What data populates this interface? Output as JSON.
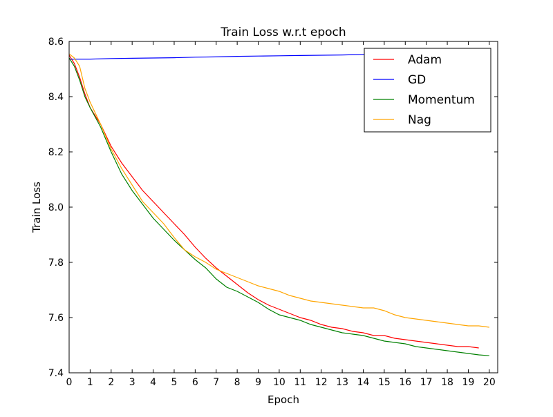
{
  "chart_data": {
    "type": "line",
    "title": "Train Loss w.r.t epoch",
    "xlabel": "Epoch",
    "ylabel": "Train Loss",
    "xlim": [
      0,
      20.4
    ],
    "ylim": [
      7.4,
      8.6
    ],
    "xticks": [
      "0",
      "1",
      "2",
      "3",
      "4",
      "5",
      "6",
      "7",
      "8",
      "9",
      "10",
      "11",
      "12",
      "13",
      "14",
      "15",
      "16",
      "17",
      "18",
      "19",
      "20"
    ],
    "yticks": [
      "7.4",
      "7.6",
      "7.8",
      "8.0",
      "8.2",
      "8.4",
      "8.6"
    ],
    "grid": false,
    "legend_position": "top-right",
    "series": [
      {
        "name": "Adam",
        "color": "#ff0000",
        "x": [
          0,
          0.25,
          0.5,
          0.75,
          1,
          1.5,
          2,
          2.5,
          3,
          3.5,
          4,
          4.5,
          5,
          5.5,
          6,
          6.5,
          7,
          7.5,
          8,
          8.5,
          9,
          9.5,
          10,
          10.5,
          11,
          11.5,
          12,
          12.5,
          13,
          13.5,
          14,
          14.5,
          15,
          15.5,
          16,
          16.5,
          17,
          17.5,
          18,
          18.5,
          19,
          19.5
        ],
        "y": [
          8.55,
          8.52,
          8.47,
          8.41,
          8.36,
          8.3,
          8.22,
          8.16,
          8.11,
          8.06,
          8.02,
          7.98,
          7.94,
          7.9,
          7.855,
          7.815,
          7.78,
          7.75,
          7.72,
          7.69,
          7.665,
          7.645,
          7.63,
          7.615,
          7.6,
          7.59,
          7.575,
          7.565,
          7.56,
          7.55,
          7.545,
          7.535,
          7.535,
          7.525,
          7.52,
          7.515,
          7.51,
          7.505,
          7.5,
          7.495,
          7.495,
          7.49
        ]
      },
      {
        "name": "GD",
        "color": "#0000ff",
        "x": [
          0,
          1,
          2,
          3,
          4,
          5,
          6,
          7,
          8,
          9,
          10,
          11,
          12,
          13,
          14,
          14.5,
          15,
          16,
          17,
          18,
          19,
          20
        ],
        "y": [
          8.536,
          8.536,
          8.538,
          8.539,
          8.54,
          8.541,
          8.543,
          8.544,
          8.546,
          8.547,
          8.548,
          8.549,
          8.55,
          8.551,
          8.553,
          8.554,
          8.556,
          8.557,
          8.559,
          8.56,
          8.562,
          8.564
        ]
      },
      {
        "name": "Momentum",
        "color": "#008000",
        "x": [
          0,
          0.25,
          0.5,
          0.75,
          1,
          1.5,
          2,
          2.5,
          3,
          3.5,
          4,
          4.5,
          5,
          5.5,
          6,
          6.5,
          7,
          7.5,
          8,
          8.5,
          9,
          9.5,
          10,
          10.5,
          11,
          11.5,
          12,
          12.5,
          13,
          13.5,
          14,
          14.5,
          15,
          15.5,
          16,
          16.5,
          17,
          17.5,
          18,
          18.5,
          19,
          19.5,
          20
        ],
        "y": [
          8.54,
          8.51,
          8.46,
          8.4,
          8.36,
          8.29,
          8.2,
          8.12,
          8.06,
          8.01,
          7.96,
          7.92,
          7.88,
          7.845,
          7.81,
          7.78,
          7.74,
          7.71,
          7.695,
          7.675,
          7.655,
          7.63,
          7.61,
          7.6,
          7.59,
          7.575,
          7.565,
          7.555,
          7.545,
          7.54,
          7.535,
          7.525,
          7.515,
          7.51,
          7.505,
          7.495,
          7.49,
          7.485,
          7.48,
          7.475,
          7.47,
          7.465,
          7.462
        ]
      },
      {
        "name": "Nag",
        "color": "#ffa500",
        "x": [
          0,
          0.25,
          0.5,
          0.75,
          1,
          1.5,
          2,
          2.5,
          3,
          3.5,
          4,
          4.5,
          5,
          5.5,
          6,
          6.5,
          7,
          7.5,
          8,
          8.5,
          9,
          9.5,
          10,
          10.5,
          11,
          11.5,
          12,
          12.5,
          13,
          13.5,
          14,
          14.5,
          15,
          15.5,
          16,
          16.5,
          17,
          17.5,
          18,
          18.5,
          19,
          19.5,
          20
        ],
        "y": [
          8.555,
          8.54,
          8.51,
          8.43,
          8.38,
          8.3,
          8.21,
          8.14,
          8.08,
          8.02,
          7.98,
          7.94,
          7.89,
          7.845,
          7.82,
          7.8,
          7.775,
          7.76,
          7.745,
          7.73,
          7.715,
          7.705,
          7.695,
          7.68,
          7.67,
          7.66,
          7.655,
          7.65,
          7.645,
          7.64,
          7.635,
          7.635,
          7.625,
          7.61,
          7.6,
          7.595,
          7.59,
          7.585,
          7.58,
          7.575,
          7.57,
          7.57,
          7.565
        ]
      }
    ]
  }
}
